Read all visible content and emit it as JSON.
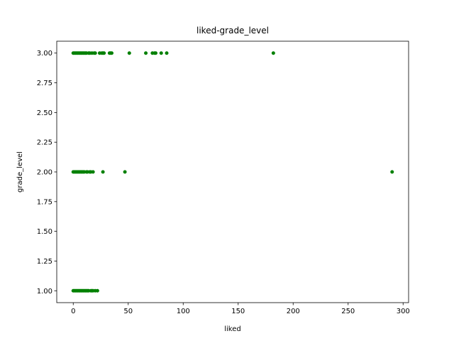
{
  "chart_data": {
    "type": "scatter",
    "title": "liked-grade_level",
    "xlabel": "liked",
    "ylabel": "grade_level",
    "xlim": [
      -15,
      305
    ],
    "ylim": [
      0.9,
      3.1
    ],
    "xticks": [
      0,
      50,
      100,
      150,
      200,
      250,
      300
    ],
    "yticks": [
      1.0,
      1.25,
      1.5,
      1.75,
      2.0,
      2.25,
      2.5,
      2.75,
      3.0
    ],
    "xtick_labels": [
      "0",
      "50",
      "100",
      "150",
      "200",
      "250",
      "300"
    ],
    "ytick_labels": [
      "1.00",
      "1.25",
      "1.50",
      "1.75",
      "2.00",
      "2.25",
      "2.50",
      "2.75",
      "3.00"
    ],
    "grid": false,
    "marker_color": "#008000",
    "points": [
      {
        "x": 0,
        "y": 3
      },
      {
        "x": 1,
        "y": 3
      },
      {
        "x": 2,
        "y": 3
      },
      {
        "x": 3,
        "y": 3
      },
      {
        "x": 4,
        "y": 3
      },
      {
        "x": 5,
        "y": 3
      },
      {
        "x": 6,
        "y": 3
      },
      {
        "x": 7,
        "y": 3
      },
      {
        "x": 8,
        "y": 3
      },
      {
        "x": 9,
        "y": 3
      },
      {
        "x": 10,
        "y": 3
      },
      {
        "x": 11,
        "y": 3
      },
      {
        "x": 12,
        "y": 3
      },
      {
        "x": 14,
        "y": 3
      },
      {
        "x": 15,
        "y": 3
      },
      {
        "x": 17,
        "y": 3
      },
      {
        "x": 19,
        "y": 3
      },
      {
        "x": 20,
        "y": 3
      },
      {
        "x": 24,
        "y": 3
      },
      {
        "x": 26,
        "y": 3
      },
      {
        "x": 27,
        "y": 3
      },
      {
        "x": 28,
        "y": 3
      },
      {
        "x": 33,
        "y": 3
      },
      {
        "x": 34,
        "y": 3
      },
      {
        "x": 35,
        "y": 3
      },
      {
        "x": 51,
        "y": 3
      },
      {
        "x": 66,
        "y": 3
      },
      {
        "x": 72,
        "y": 3
      },
      {
        "x": 74,
        "y": 3
      },
      {
        "x": 75,
        "y": 3
      },
      {
        "x": 80,
        "y": 3
      },
      {
        "x": 85,
        "y": 3
      },
      {
        "x": 182,
        "y": 3
      },
      {
        "x": 0,
        "y": 2
      },
      {
        "x": 1,
        "y": 2
      },
      {
        "x": 2,
        "y": 2
      },
      {
        "x": 3,
        "y": 2
      },
      {
        "x": 4,
        "y": 2
      },
      {
        "x": 5,
        "y": 2
      },
      {
        "x": 6,
        "y": 2
      },
      {
        "x": 7,
        "y": 2
      },
      {
        "x": 8,
        "y": 2
      },
      {
        "x": 9,
        "y": 2
      },
      {
        "x": 10,
        "y": 2
      },
      {
        "x": 12,
        "y": 2
      },
      {
        "x": 13,
        "y": 2
      },
      {
        "x": 15,
        "y": 2
      },
      {
        "x": 16,
        "y": 2
      },
      {
        "x": 18,
        "y": 2
      },
      {
        "x": 27,
        "y": 2
      },
      {
        "x": 47,
        "y": 2
      },
      {
        "x": 290,
        "y": 2
      },
      {
        "x": 0,
        "y": 1
      },
      {
        "x": 1,
        "y": 1
      },
      {
        "x": 2,
        "y": 1
      },
      {
        "x": 3,
        "y": 1
      },
      {
        "x": 4,
        "y": 1
      },
      {
        "x": 5,
        "y": 1
      },
      {
        "x": 6,
        "y": 1
      },
      {
        "x": 7,
        "y": 1
      },
      {
        "x": 8,
        "y": 1
      },
      {
        "x": 9,
        "y": 1
      },
      {
        "x": 10,
        "y": 1
      },
      {
        "x": 11,
        "y": 1
      },
      {
        "x": 12,
        "y": 1
      },
      {
        "x": 13,
        "y": 1
      },
      {
        "x": 14,
        "y": 1
      },
      {
        "x": 16,
        "y": 1
      },
      {
        "x": 17,
        "y": 1
      },
      {
        "x": 18,
        "y": 1
      },
      {
        "x": 20,
        "y": 1
      },
      {
        "x": 22,
        "y": 1
      }
    ]
  }
}
